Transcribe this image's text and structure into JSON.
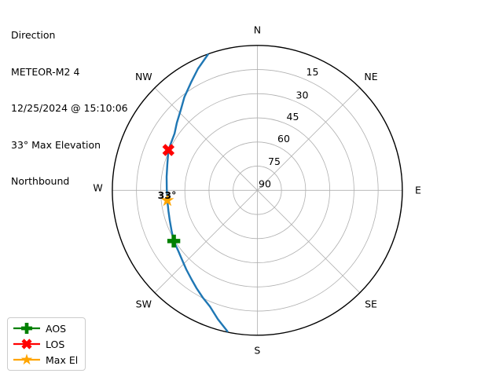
{
  "header": {
    "lines": [
      "Direction",
      "METEOR-M2 4",
      "12/25/2024 @ 15:10:06",
      "33° Max Elevation",
      "Northbound"
    ]
  },
  "chart_data": {
    "type": "polar-sky-track",
    "title": "Direction",
    "satellite": "METEOR-M2 4",
    "datetime": "12/25/2024 @ 15:10:06",
    "max_elevation_deg": 33,
    "pass_direction": "Northbound",
    "compass": [
      "N",
      "NE",
      "E",
      "SE",
      "S",
      "SW",
      "W",
      "NW"
    ],
    "elevation_ticks": [
      15,
      30,
      45,
      60,
      75,
      90
    ],
    "elevation_range": [
      0,
      90
    ],
    "grid_color": "#b0b0b0",
    "outline_color": "#000000",
    "track": {
      "name": "satellite-pass-track",
      "color": "#1f77b4",
      "points_az_el": [
        [
          340.0,
          0.3
        ],
        [
          334.0,
          6.0
        ],
        [
          328.4,
          11.4
        ],
        [
          322.0,
          16.5
        ],
        [
          316.4,
          21.1
        ],
        [
          310.0,
          24.8
        ],
        [
          304.5,
          27.7
        ],
        [
          299.0,
          28.9
        ],
        [
          294.4,
          29.4
        ],
        [
          286.0,
          31.9
        ],
        [
          278.5,
          33.1
        ],
        [
          271.0,
          33.8
        ],
        [
          263.6,
          33.8
        ],
        [
          257.0,
          33.4
        ],
        [
          251.3,
          32.6
        ],
        [
          245.0,
          31.2
        ],
        [
          238.7,
          29.3
        ],
        [
          232.3,
          28.1
        ],
        [
          227.0,
          26.3
        ],
        [
          221.9,
          24.0
        ],
        [
          216.5,
          21.3
        ],
        [
          211.8,
          18.4
        ],
        [
          207.0,
          15.3
        ],
        [
          202.2,
          12.1
        ],
        [
          197.0,
          6.3
        ],
        [
          192.0,
          0.5
        ]
      ]
    },
    "markers": [
      {
        "label": "AOS",
        "marker": "plus",
        "color": "#008000",
        "az": 238.7,
        "el": 29.3
      },
      {
        "label": "LOS",
        "marker": "x",
        "color": "#ff0000",
        "az": 294.4,
        "el": 29.4
      },
      {
        "label": "Max El",
        "marker": "star",
        "color": "#ffa500",
        "az": 263.6,
        "el": 33.8,
        "annotation": "33°"
      }
    ]
  },
  "legend": {
    "items": [
      {
        "label": "AOS",
        "marker": "plus",
        "color": "#008000"
      },
      {
        "label": "LOS",
        "marker": "x",
        "color": "#ff0000"
      },
      {
        "label": "Max El",
        "marker": "star",
        "color": "#ffa500"
      }
    ]
  }
}
